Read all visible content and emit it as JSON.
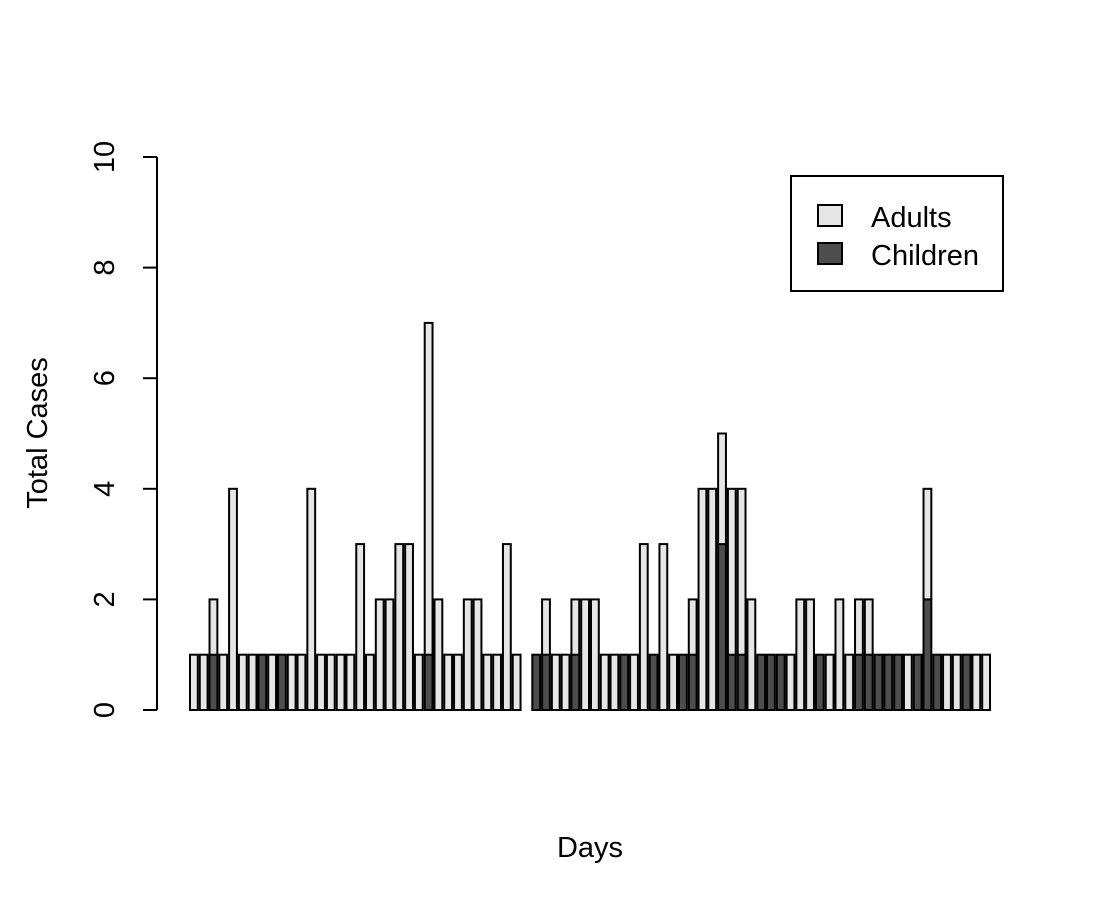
{
  "chart_data": {
    "type": "bar",
    "stacked": true,
    "title": "",
    "xlabel": "Days",
    "ylabel": "Total Cases",
    "ylim": [
      0,
      10
    ],
    "yticks": [
      "0",
      "2",
      "4",
      "6",
      "8",
      "10"
    ],
    "grid": false,
    "legend": {
      "placement": "top-right",
      "entries": [
        "Adults",
        "Children"
      ]
    },
    "colors": {
      "Adults": "#e6e6e6",
      "Children": "#4d4d4d",
      "outline": "#000000"
    },
    "series": [
      {
        "name": "Children",
        "values": [
          0,
          0,
          1,
          0,
          0,
          0,
          0,
          1,
          0,
          1,
          0,
          0,
          0,
          0,
          0,
          0,
          0,
          0,
          0,
          0,
          0,
          0,
          0,
          0,
          1,
          0,
          0,
          0,
          0,
          0,
          0,
          0,
          0,
          0,
          0,
          1,
          1,
          0,
          0,
          1,
          0,
          0,
          0,
          0,
          1,
          0,
          0,
          1,
          0,
          0,
          1,
          1,
          0,
          0,
          3,
          1,
          1,
          0,
          1,
          1,
          1,
          0,
          0,
          0,
          1,
          0,
          0,
          0,
          1,
          1,
          1,
          1,
          1,
          0,
          1,
          2,
          1,
          0,
          0,
          1,
          0,
          0
        ]
      },
      {
        "name": "Adults",
        "values": [
          1,
          1,
          1,
          1,
          4,
          1,
          1,
          0,
          1,
          0,
          1,
          1,
          4,
          1,
          1,
          1,
          1,
          3,
          1,
          2,
          2,
          3,
          3,
          1,
          6,
          2,
          1,
          1,
          2,
          2,
          1,
          1,
          3,
          1,
          0,
          0,
          1,
          1,
          1,
          1,
          2,
          2,
          1,
          1,
          0,
          1,
          3,
          0,
          3,
          1,
          0,
          1,
          4,
          4,
          2,
          3,
          3,
          2,
          0,
          0,
          0,
          1,
          2,
          2,
          0,
          1,
          2,
          1,
          1,
          1,
          0,
          0,
          0,
          1,
          0,
          2,
          0,
          1,
          1,
          0,
          1,
          1
        ]
      }
    ]
  }
}
